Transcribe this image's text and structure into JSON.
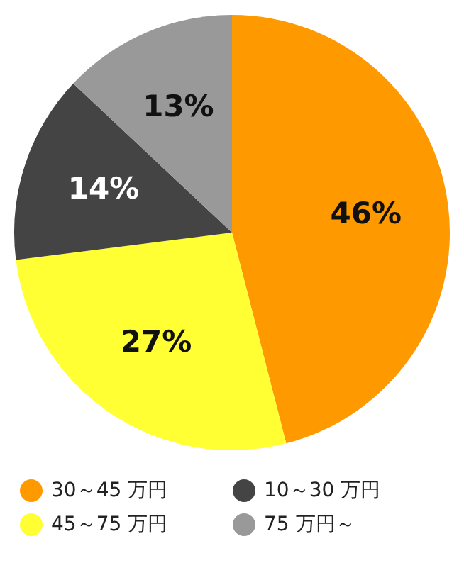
{
  "chart_data": {
    "type": "pie",
    "categories": [
      "30～45 万円",
      "45～75 万円",
      "10～30 万円",
      "75 万円～"
    ],
    "values": [
      46,
      27,
      14,
      13
    ],
    "colors": [
      "#ff9900",
      "#ffff33",
      "#444444",
      "#999999"
    ],
    "value_labels": [
      "46%",
      "27%",
      "14%",
      "13%"
    ],
    "legend": "bottom"
  }
}
